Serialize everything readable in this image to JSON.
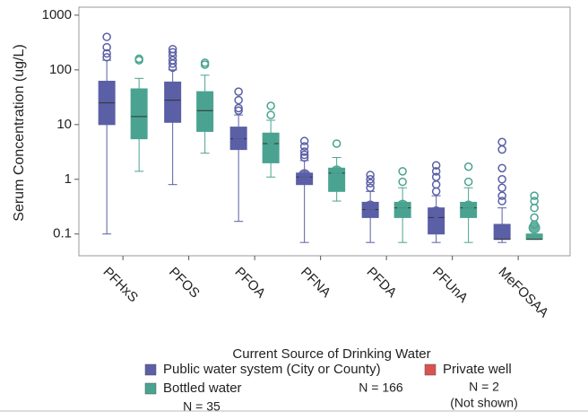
{
  "chart_data": {
    "type": "box",
    "y_label": "Serum Concentration (ug/L)",
    "x_label": "Current Source of Drinking Water",
    "log_y": true,
    "ylim": [
      0.04,
      1400
    ],
    "yticks": [
      0.1,
      1,
      10,
      100,
      1000
    ],
    "categories": [
      "PFHxS",
      "PFOS",
      "PFOA",
      "PFNA",
      "PFDA",
      "PFUnA",
      "MeFOSAA"
    ],
    "series": [
      {
        "name": "Public water system (City or County)",
        "color": "#5a5fa6",
        "n_label": "N = 166",
        "boxes": [
          {
            "min": 0.1,
            "q1": 10,
            "median": 25,
            "q3": 62,
            "max": 150,
            "mean": 48,
            "outliers": [
              170,
              200,
              260,
              400
            ]
          },
          {
            "min": 0.8,
            "q1": 11,
            "median": 28,
            "q3": 60,
            "max": 100,
            "mean": 40,
            "outliers": [
              110,
              130,
              150,
              180,
              210,
              240
            ]
          },
          {
            "min": 0.17,
            "q1": 3.5,
            "median": 5.5,
            "q3": 9,
            "max": 15,
            "mean": 6,
            "outliers": [
              18,
              20,
              28,
              40
            ]
          },
          {
            "min": 0.07,
            "q1": 0.8,
            "median": 1.1,
            "q3": 1.3,
            "max": 2.2,
            "mean": 1.2,
            "outliers": [
              2.5,
              2.8,
              3.2,
              4,
              5
            ]
          },
          {
            "min": 0.07,
            "q1": 0.2,
            "median": 0.28,
            "q3": 0.38,
            "max": 0.6,
            "mean": 0.32,
            "outliers": [
              0.7,
              0.85,
              1,
              1.2
            ]
          },
          {
            "min": 0.07,
            "q1": 0.1,
            "median": 0.2,
            "q3": 0.3,
            "max": 0.5,
            "mean": 0.25,
            "outliers": [
              0.6,
              0.8,
              1.1,
              1.4,
              1.8
            ]
          },
          {
            "min": 0.07,
            "q1": 0.08,
            "median": 0.08,
            "q3": 0.15,
            "max": 0.3,
            "mean": 0.12,
            "outliers": [
              0.4,
              0.5,
              0.7,
              1,
              1.6,
              3.5,
              4.8
            ]
          }
        ]
      },
      {
        "name": "Bottled water",
        "color": "#4aa390",
        "n_label": "N = 35",
        "boxes": [
          {
            "min": 1.4,
            "q1": 5.5,
            "median": 14,
            "q3": 45,
            "max": 70,
            "mean": 28,
            "outliers": [
              150,
              160
            ]
          },
          {
            "min": 3,
            "q1": 7.5,
            "median": 18,
            "q3": 40,
            "max": 80,
            "mean": 28,
            "outliers": [
              125,
              135
            ]
          },
          {
            "min": 1.1,
            "q1": 2,
            "median": 4.5,
            "q3": 7,
            "max": 12,
            "mean": 5.5,
            "outliers": [
              15,
              22
            ]
          },
          {
            "min": 0.4,
            "q1": 0.6,
            "median": 1.3,
            "q3": 1.6,
            "max": 2.5,
            "mean": 1.4,
            "outliers": [
              4.5
            ]
          },
          {
            "min": 0.07,
            "q1": 0.2,
            "median": 0.3,
            "q3": 0.38,
            "max": 0.7,
            "mean": 0.33,
            "outliers": [
              0.9,
              1.4
            ]
          },
          {
            "min": 0.07,
            "q1": 0.2,
            "median": 0.3,
            "q3": 0.38,
            "max": 0.7,
            "mean": 0.32,
            "outliers": [
              0.9,
              1.7
            ]
          },
          {
            "min": 0.08,
            "q1": 0.08,
            "median": 0.08,
            "q3": 0.1,
            "max": 0.1,
            "mean": 0.13,
            "outliers": [
              0.15,
              0.2,
              0.3,
              0.4,
              0.5
            ]
          }
        ]
      },
      {
        "name": "Private well",
        "color": "#d9534f",
        "n_label": "N = 2",
        "note": "(Not shown)"
      }
    ]
  }
}
